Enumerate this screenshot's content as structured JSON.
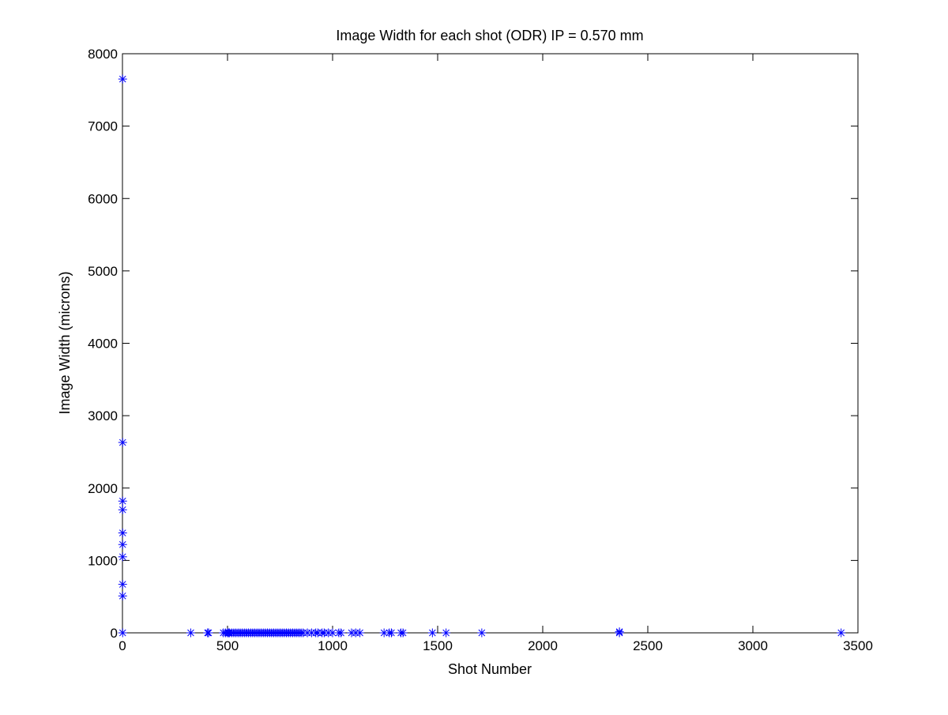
{
  "chart_data": {
    "type": "scatter",
    "title": "Image Width for each shot (ODR) IP = 0.570 mm",
    "xlabel": "Shot Number",
    "ylabel": "Image Width (microns)",
    "xlim": [
      0,
      3500
    ],
    "ylim": [
      0,
      8000
    ],
    "xticks": [
      0,
      500,
      1000,
      1500,
      2000,
      2500,
      3000,
      3500
    ],
    "yticks": [
      0,
      1000,
      2000,
      3000,
      4000,
      5000,
      6000,
      7000,
      8000
    ],
    "grid": false,
    "marker": "asterisk",
    "color": "#0000ff",
    "points": [
      [
        1,
        7650
      ],
      [
        1,
        2630
      ],
      [
        1,
        1820
      ],
      [
        1,
        1700
      ],
      [
        1,
        1380
      ],
      [
        1,
        1220
      ],
      [
        1,
        1050
      ],
      [
        1,
        670
      ],
      [
        1,
        510
      ],
      [
        1,
        0
      ],
      [
        325,
        0
      ],
      [
        405,
        0
      ],
      [
        410,
        0
      ],
      [
        480,
        0
      ],
      [
        490,
        0
      ],
      [
        500,
        0
      ],
      [
        505,
        0
      ],
      [
        510,
        0
      ],
      [
        520,
        0
      ],
      [
        530,
        0
      ],
      [
        540,
        0
      ],
      [
        550,
        0
      ],
      [
        560,
        0
      ],
      [
        570,
        0
      ],
      [
        580,
        0
      ],
      [
        590,
        0
      ],
      [
        600,
        0
      ],
      [
        610,
        0
      ],
      [
        620,
        0
      ],
      [
        630,
        0
      ],
      [
        640,
        0
      ],
      [
        650,
        0
      ],
      [
        660,
        0
      ],
      [
        670,
        0
      ],
      [
        680,
        0
      ],
      [
        690,
        0
      ],
      [
        700,
        0
      ],
      [
        710,
        0
      ],
      [
        720,
        0
      ],
      [
        730,
        0
      ],
      [
        740,
        0
      ],
      [
        750,
        0
      ],
      [
        760,
        0
      ],
      [
        770,
        0
      ],
      [
        780,
        0
      ],
      [
        790,
        0
      ],
      [
        800,
        0
      ],
      [
        810,
        0
      ],
      [
        820,
        0
      ],
      [
        830,
        0
      ],
      [
        840,
        0
      ],
      [
        850,
        0
      ],
      [
        860,
        0
      ],
      [
        880,
        0
      ],
      [
        900,
        0
      ],
      [
        920,
        0
      ],
      [
        930,
        0
      ],
      [
        950,
        0
      ],
      [
        960,
        0
      ],
      [
        980,
        0
      ],
      [
        1000,
        0
      ],
      [
        1030,
        0
      ],
      [
        1040,
        0
      ],
      [
        1090,
        0
      ],
      [
        1110,
        0
      ],
      [
        1130,
        0
      ],
      [
        1245,
        0
      ],
      [
        1270,
        0
      ],
      [
        1280,
        0
      ],
      [
        1325,
        0
      ],
      [
        1335,
        0
      ],
      [
        1475,
        0
      ],
      [
        1540,
        0
      ],
      [
        1710,
        0
      ],
      [
        2365,
        0
      ],
      [
        2365,
        15
      ],
      [
        3420,
        0
      ]
    ]
  }
}
